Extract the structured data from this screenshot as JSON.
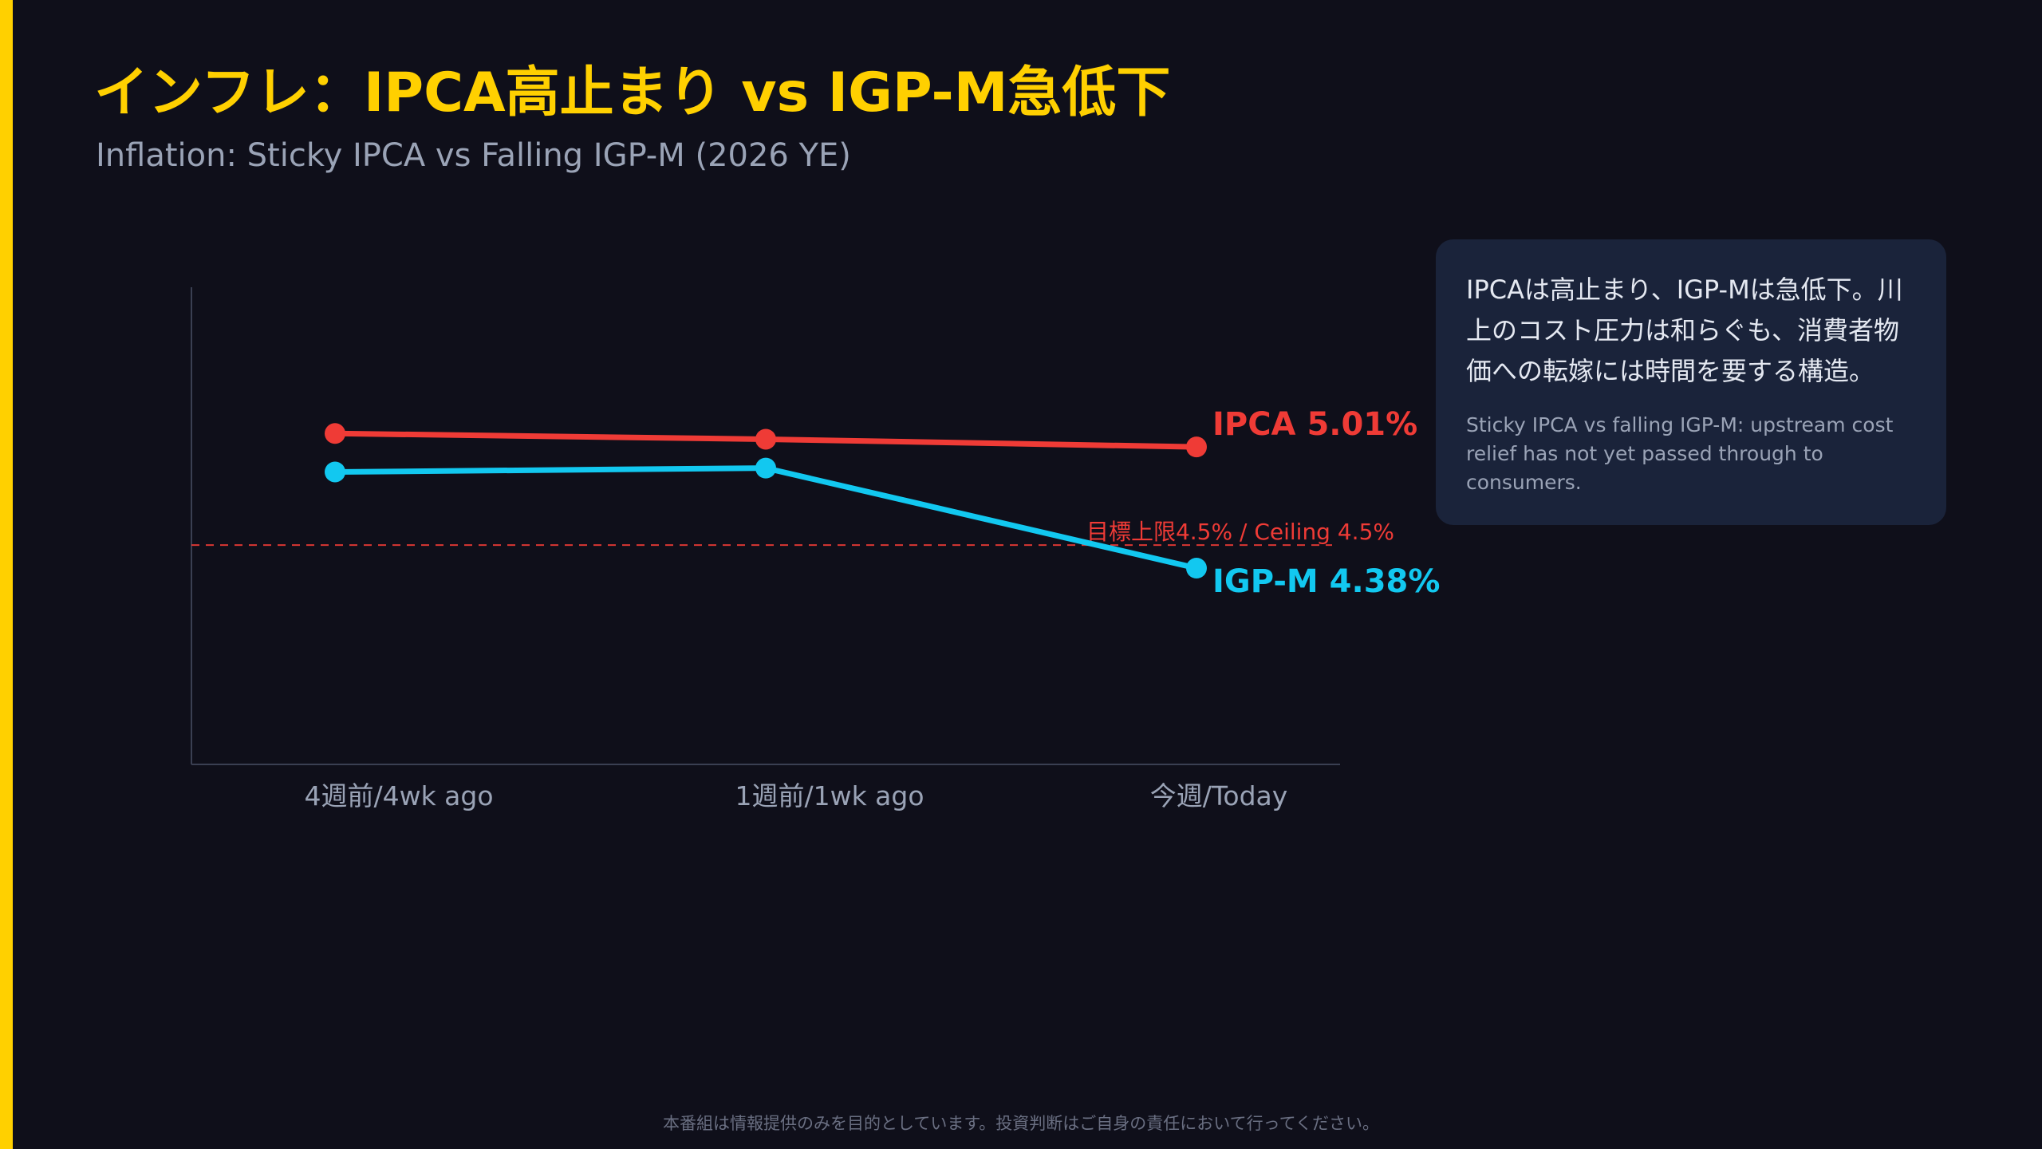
{
  "title": "インフレ：IPCA高止まり vs IGP-M急低下",
  "subtitle": "Inflation: Sticky IPCA vs Falling IGP-M (2026 YE)",
  "colors": {
    "accent": "#ffd000",
    "ipca": "#ef3b36",
    "igpm": "#12c8f0",
    "ceiling": "#ef3b36",
    "background": "#0f0f1a",
    "panel": "#1a233a"
  },
  "chart_data": {
    "type": "line",
    "categories": [
      "4週前/4wk ago",
      "1週前/1wk ago",
      "今週/Today"
    ],
    "series": [
      {
        "name": "IPCA",
        "values": [
          5.08,
          5.05,
          5.01
        ],
        "end_label": "IPCA 5.01%",
        "color": "#ef3b36"
      },
      {
        "name": "IGP-M",
        "values": [
          4.88,
          4.9,
          4.38
        ],
        "end_label": "IGP-M 4.38%",
        "color": "#12c8f0"
      }
    ],
    "reference_line": {
      "value": 4.5,
      "label": "目標上限4.5% / Ceiling 4.5%",
      "style": "dashed"
    },
    "ylim": [
      3.36,
      5.84
    ],
    "grid": false,
    "legend": "none"
  },
  "callout": {
    "text_ja": "IPCAは高止まり、IGP-Mは急低下。川上のコスト圧力は和らぐも、消費者物価への転嫁には時間を要する構造。",
    "text_en": "Sticky IPCA vs falling IGP-M: upstream cost relief has not yet passed through to consumers."
  },
  "disclaimer": "本番組は情報提供のみを目的としています。投資判断はご自身の責任において行ってください。"
}
